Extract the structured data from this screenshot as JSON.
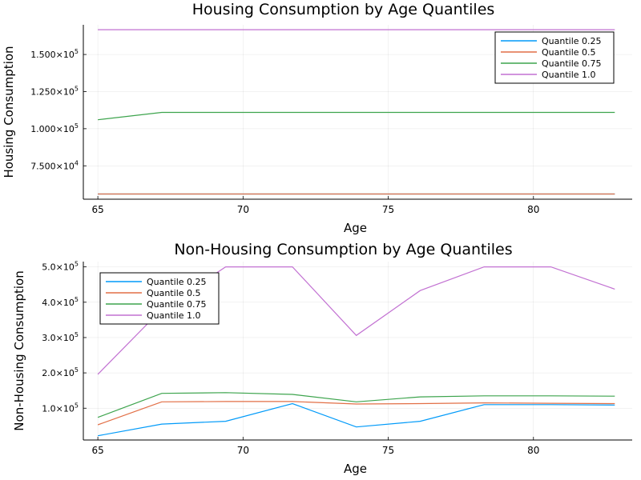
{
  "chart_data": [
    {
      "type": "line",
      "title": "Housing Consumption by Age Quantiles",
      "xlabel": "Age",
      "ylabel": "Housing Consumption",
      "xlim": [
        64.5,
        83.4
      ],
      "ylim": [
        52500,
        170000
      ],
      "x_ticks": [
        65,
        70,
        75,
        80
      ],
      "x_tick_labels": [
        "65",
        "70",
        "75",
        "80"
      ],
      "y_ticks": [
        75000,
        100000,
        125000,
        150000
      ],
      "y_tick_labels": [
        {
          "mantissa": "7.500×10",
          "exp": "4"
        },
        {
          "mantissa": "1.000×10",
          "exp": "5"
        },
        {
          "mantissa": "1.250×10",
          "exp": "5"
        },
        {
          "mantissa": "1.500×10",
          "exp": "5"
        }
      ],
      "grid": true,
      "legend_position": "top-right",
      "x": [
        65,
        67.2,
        69.4,
        71.7,
        73.9,
        76.1,
        78.3,
        80.6,
        82.8
      ],
      "series": [
        {
          "name": "Quantile 0.25",
          "color": "#009af9",
          "values": [
            56000,
            56000,
            56000,
            56000,
            56000,
            56000,
            56000,
            56000,
            56000
          ]
        },
        {
          "name": "Quantile 0.5",
          "color": "#e26f46",
          "values": [
            56000,
            56000,
            56000,
            56000,
            56000,
            56000,
            56000,
            56000,
            56000
          ]
        },
        {
          "name": "Quantile 0.75",
          "color": "#3da44d",
          "values": [
            106000,
            111000,
            111000,
            111000,
            111000,
            111000,
            111000,
            111000,
            111000
          ]
        },
        {
          "name": "Quantile 1.0",
          "color": "#c271d2",
          "values": [
            166700,
            166700,
            166700,
            166700,
            166700,
            166700,
            166700,
            166700,
            166700
          ]
        }
      ]
    },
    {
      "type": "line",
      "title": "Non-Housing Consumption by Age Quantiles",
      "xlabel": "Age",
      "ylabel": "Non-Housing Consumption",
      "xlim": [
        64.5,
        83.4
      ],
      "ylim": [
        10000,
        515000
      ],
      "x_ticks": [
        65,
        70,
        75,
        80
      ],
      "x_tick_labels": [
        "65",
        "70",
        "75",
        "80"
      ],
      "y_ticks": [
        100000,
        200000,
        300000,
        400000,
        500000
      ],
      "y_tick_labels": [
        {
          "mantissa": "1.0×10",
          "exp": "5"
        },
        {
          "mantissa": "2.0×10",
          "exp": "5"
        },
        {
          "mantissa": "3.0×10",
          "exp": "5"
        },
        {
          "mantissa": "4.0×10",
          "exp": "5"
        },
        {
          "mantissa": "5.0×10",
          "exp": "5"
        }
      ],
      "grid": true,
      "legend_position": "top-left",
      "x": [
        65,
        67.2,
        69.4,
        71.7,
        73.9,
        76.1,
        78.3,
        80.6,
        82.8
      ],
      "series": [
        {
          "name": "Quantile 0.25",
          "color": "#009af9",
          "values": [
            22000,
            55000,
            63000,
            113000,
            47000,
            63000,
            110000,
            110000,
            109000
          ]
        },
        {
          "name": "Quantile 0.5",
          "color": "#e26f46",
          "values": [
            53000,
            118000,
            119000,
            119000,
            112000,
            113000,
            115000,
            114000,
            113000
          ]
        },
        {
          "name": "Quantile 0.75",
          "color": "#3da44d",
          "values": [
            74000,
            142000,
            144000,
            139000,
            118000,
            132000,
            135000,
            135000,
            134000
          ]
        },
        {
          "name": "Quantile 1.0",
          "color": "#c271d2",
          "values": [
            196000,
            380000,
            500000,
            500000,
            306000,
            433000,
            500000,
            500000,
            437000
          ]
        }
      ]
    }
  ]
}
